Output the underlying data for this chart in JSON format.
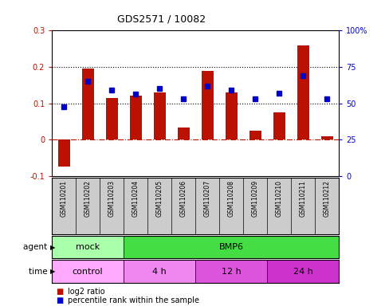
{
  "title": "GDS2571 / 10082",
  "samples": [
    "GSM110201",
    "GSM110202",
    "GSM110203",
    "GSM110204",
    "GSM110205",
    "GSM110206",
    "GSM110207",
    "GSM110208",
    "GSM110209",
    "GSM110210",
    "GSM110211",
    "GSM110212"
  ],
  "log2_ratio": [
    -0.075,
    0.195,
    0.115,
    0.122,
    0.13,
    0.033,
    0.19,
    0.13,
    0.025,
    0.075,
    0.26,
    0.01
  ],
  "percentile_right": [
    47.5,
    65.0,
    59.0,
    56.5,
    60.0,
    53.0,
    62.0,
    59.0,
    53.0,
    57.0,
    69.0,
    53.0
  ],
  "bar_color": "#bb1100",
  "dot_color": "#0000cc",
  "ylim_left": [
    -0.1,
    0.3
  ],
  "ylim_right": [
    0,
    100
  ],
  "yticks_left": [
    -0.1,
    0.0,
    0.1,
    0.2,
    0.3
  ],
  "ytick_labels_left": [
    "-0.1",
    "0",
    "0.1",
    "0.2",
    "0.3"
  ],
  "yticks_right": [
    0,
    25,
    50,
    75,
    100
  ],
  "ytick_labels_right": [
    "0",
    "25",
    "50",
    "75",
    "100%"
  ],
  "hlines": [
    0.1,
    0.2
  ],
  "zero_line": 0.0,
  "agent_labels": [
    {
      "text": "mock",
      "start": 0,
      "end": 3,
      "color": "#aaffaa"
    },
    {
      "text": "BMP6",
      "start": 3,
      "end": 12,
      "color": "#44dd44"
    }
  ],
  "time_labels": [
    {
      "text": "control",
      "start": 0,
      "end": 3,
      "color": "#ffaaff"
    },
    {
      "text": "4 h",
      "start": 3,
      "end": 6,
      "color": "#ee88ee"
    },
    {
      "text": "12 h",
      "start": 6,
      "end": 9,
      "color": "#dd55dd"
    },
    {
      "text": "24 h",
      "start": 9,
      "end": 12,
      "color": "#cc33cc"
    }
  ],
  "legend_log2_color": "#bb1100",
  "legend_pct_color": "#0000cc",
  "bg_color": "#ffffff",
  "tick_area_color": "#cccccc",
  "tick_area_border": "#888888"
}
